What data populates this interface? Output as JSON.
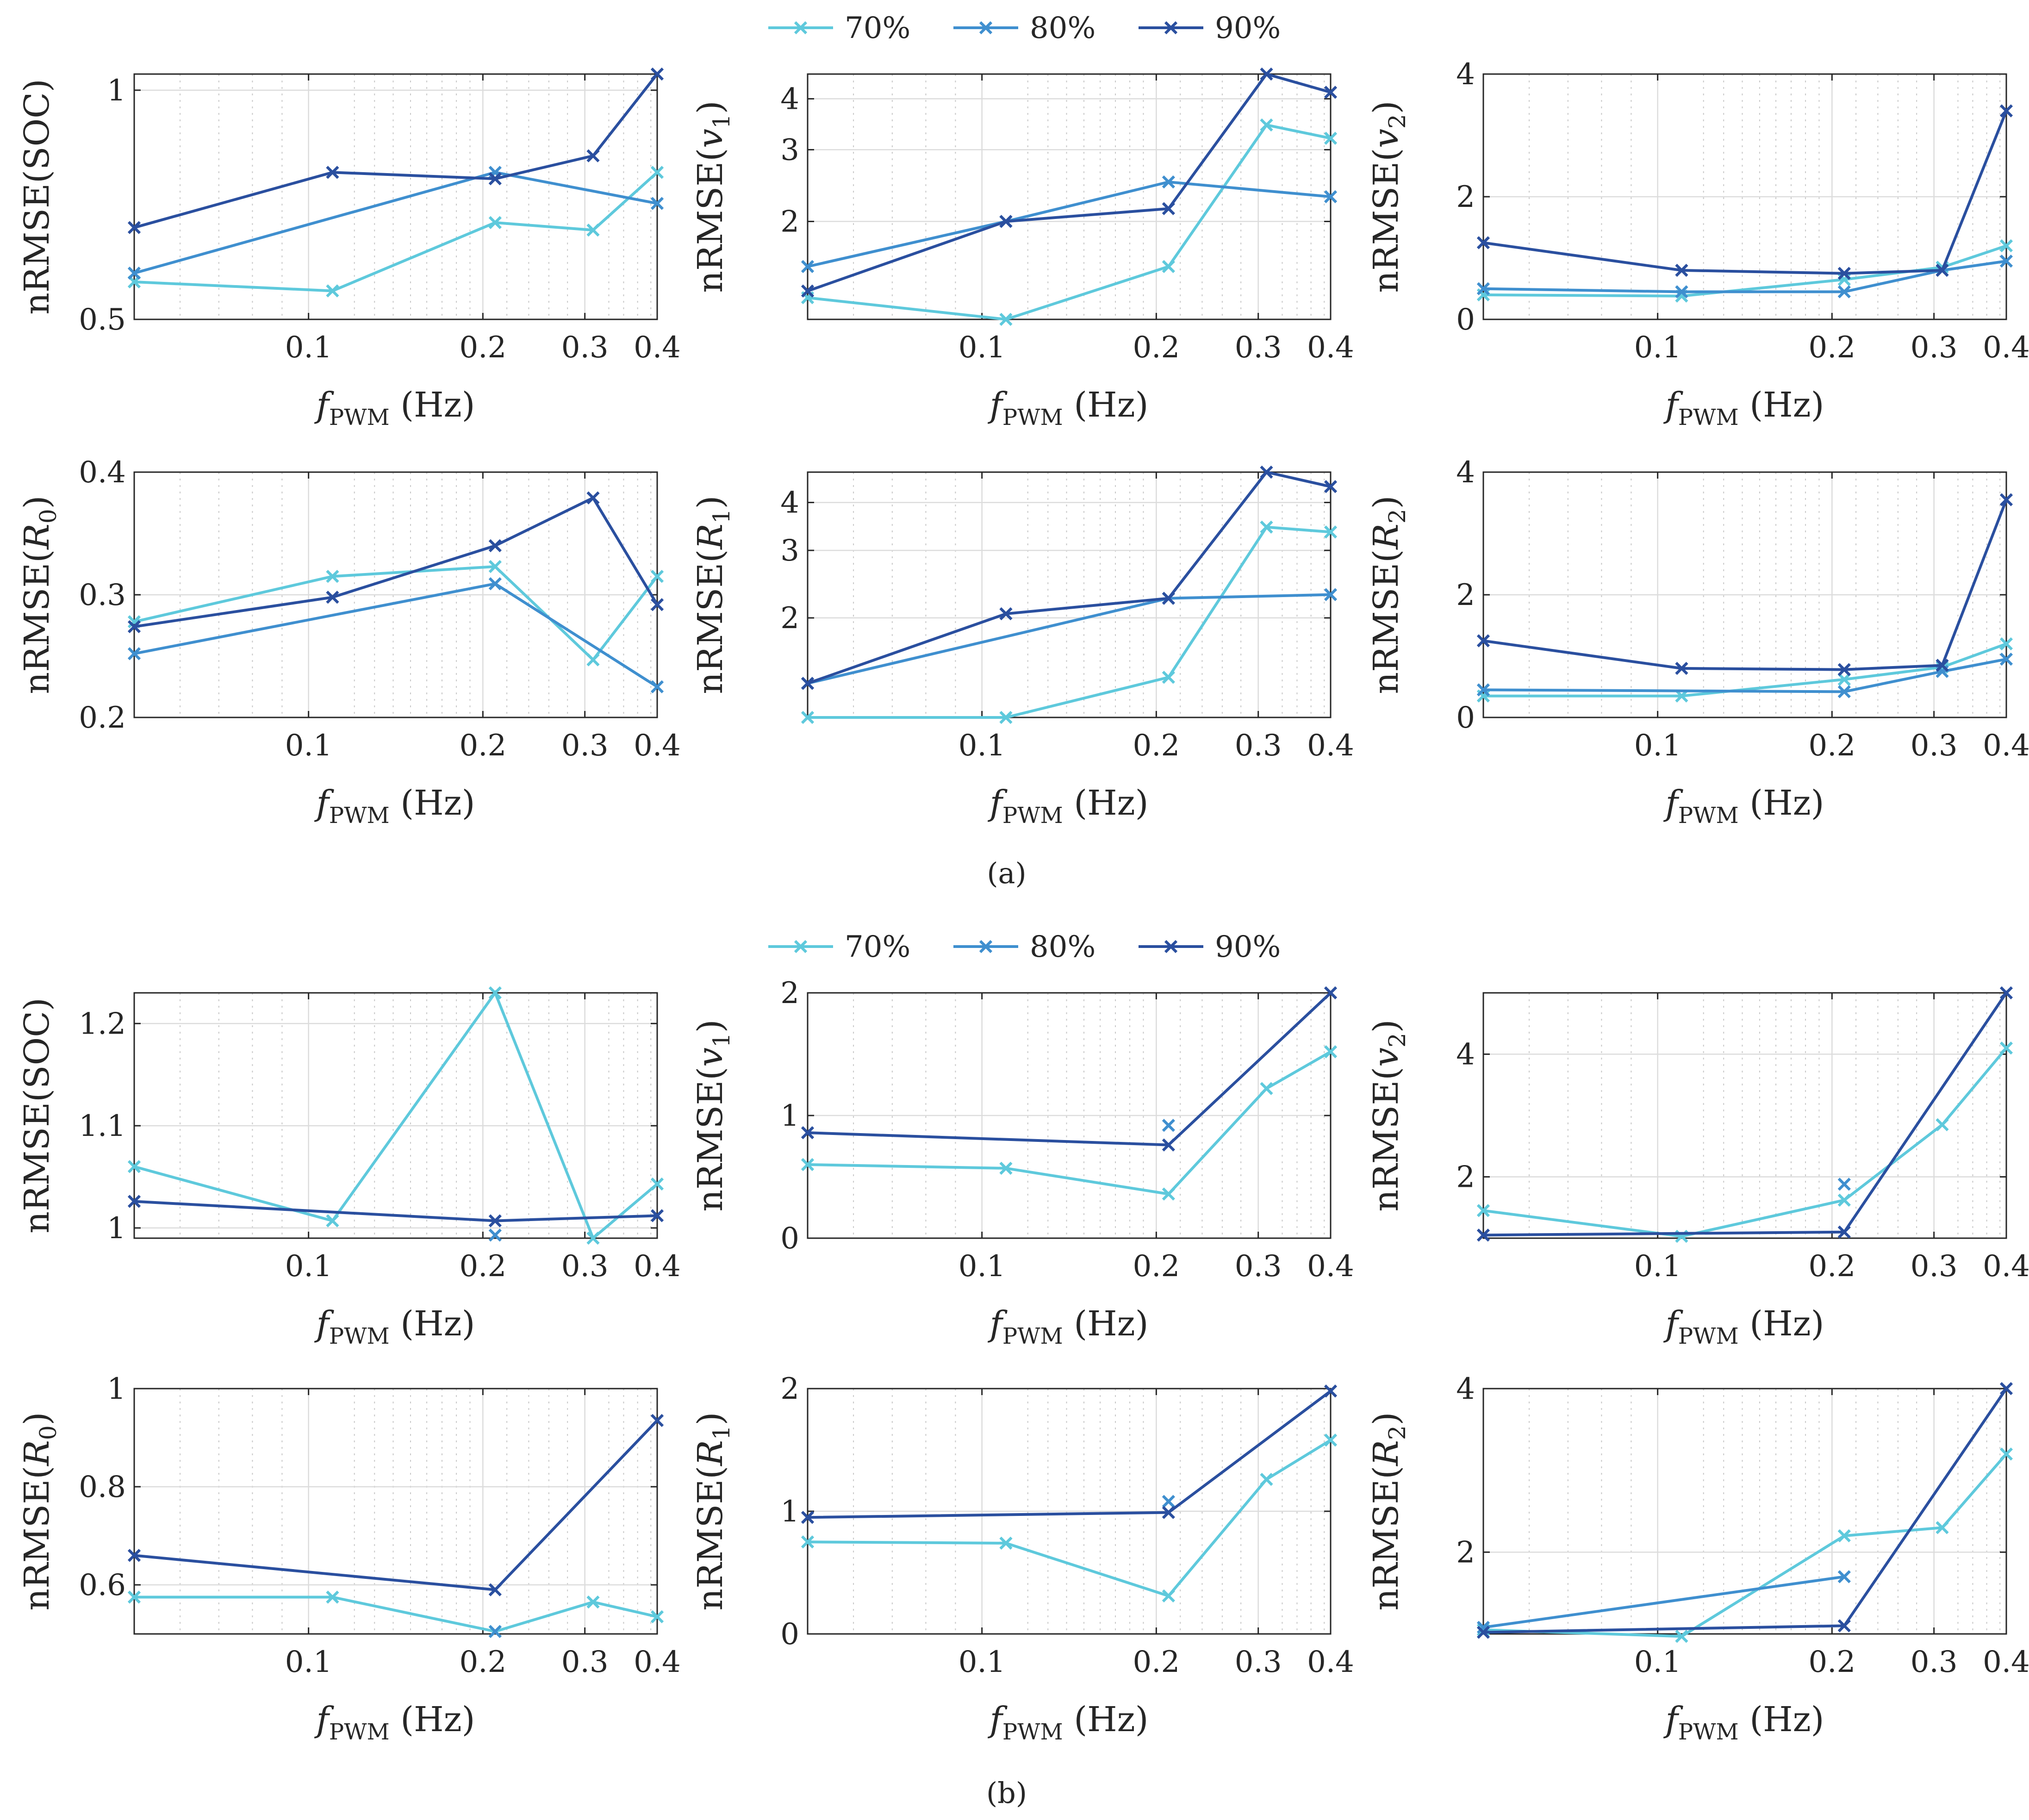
{
  "colors": {
    "70%": "#5ec9dc",
    "80%": "#3f8fcf",
    "90%": "#2a4f9f"
  },
  "legend": {
    "entries": [
      "70%",
      "80%",
      "90%"
    ]
  },
  "captions": {
    "a": "(a)",
    "b": "(b)"
  },
  "axis_text": {
    "x_label_main": "f",
    "x_label_sub": "PWM",
    "x_label_unit": " (Hz)",
    "x_ticks": [
      "0.1",
      "0.2",
      "0.3",
      "0.4"
    ]
  },
  "chart_data": [
    {
      "id": "a-soc",
      "type": "line",
      "ylabel": "nRMSE(SOC)",
      "ylabel_main": "nRMSE(SOC)",
      "ylabel_sub": "",
      "yscale": "log",
      "xscale": "log",
      "xlim": [
        0.05,
        0.4
      ],
      "ylim": [
        0.5,
        1.05
      ],
      "yticks": [
        0.5,
        1
      ],
      "ytick_labels": [
        "0.5",
        "1"
      ],
      "x": [
        0.05,
        0.11,
        0.21,
        0.31,
        0.4
      ],
      "series": [
        {
          "name": "70%",
          "values": [
            0.56,
            0.545,
            0.67,
            0.655,
            0.78
          ]
        },
        {
          "name": "80%",
          "values": [
            0.575,
            null,
            0.78,
            null,
            0.71
          ]
        },
        {
          "name": "90%",
          "values": [
            0.66,
            0.78,
            0.765,
            0.82,
            1.05
          ]
        }
      ]
    },
    {
      "id": "a-v1",
      "type": "line",
      "ylabel": "nRMSE(v1)",
      "ylabel_main": "nRMSE(",
      "ylabel_var": "v",
      "ylabel_sub": "1",
      "yscale": "log",
      "xscale": "log",
      "xlim": [
        0.05,
        0.4
      ],
      "ylim": [
        1.15,
        4.6
      ],
      "yticks": [
        2,
        3,
        4
      ],
      "ytick_labels": [
        "2",
        "3",
        "4"
      ],
      "x": [
        0.05,
        0.11,
        0.21,
        0.31,
        0.4
      ],
      "series": [
        {
          "name": "70%",
          "values": [
            1.3,
            1.15,
            1.55,
            3.45,
            3.2
          ]
        },
        {
          "name": "80%",
          "values": [
            1.55,
            2.0,
            2.5,
            null,
            2.3
          ]
        },
        {
          "name": "90%",
          "values": [
            1.35,
            2.0,
            2.15,
            4.6,
            4.15
          ]
        }
      ]
    },
    {
      "id": "a-v2",
      "type": "line",
      "ylabel": "nRMSE(v2)",
      "ylabel_main": "nRMSE(",
      "ylabel_var": "v",
      "ylabel_sub": "2",
      "yscale": "linear",
      "xscale": "log",
      "xlim": [
        0.05,
        0.4
      ],
      "ylim": [
        0,
        4
      ],
      "yticks": [
        0,
        2,
        4
      ],
      "ytick_labels": [
        "0",
        "2",
        "4"
      ],
      "x": [
        0.05,
        0.11,
        0.21,
        0.31,
        0.4
      ],
      "series": [
        {
          "name": "70%",
          "values": [
            0.4,
            0.38,
            0.65,
            0.85,
            1.2
          ]
        },
        {
          "name": "80%",
          "values": [
            0.5,
            0.45,
            0.45,
            0.8,
            0.95
          ]
        },
        {
          "name": "90%",
          "values": [
            1.25,
            0.8,
            0.75,
            0.8,
            3.4
          ]
        }
      ]
    },
    {
      "id": "a-r0",
      "type": "line",
      "ylabel": "nRMSE(R0)",
      "ylabel_main": "nRMSE(",
      "ylabel_var": "R",
      "ylabel_sub": "0",
      "yscale": "linear",
      "xscale": "log",
      "xlim": [
        0.05,
        0.4
      ],
      "ylim": [
        0.2,
        0.4
      ],
      "yticks": [
        0.2,
        0.3,
        0.4
      ],
      "ytick_labels": [
        "0.2",
        "0.3",
        "0.4"
      ],
      "x": [
        0.05,
        0.11,
        0.21,
        0.31,
        0.4
      ],
      "series": [
        {
          "name": "70%",
          "values": [
            0.278,
            0.315,
            0.323,
            0.247,
            0.315
          ]
        },
        {
          "name": "80%",
          "values": [
            0.252,
            null,
            0.309,
            null,
            0.225
          ]
        },
        {
          "name": "90%",
          "values": [
            0.274,
            0.298,
            0.34,
            0.379,
            0.292
          ]
        }
      ]
    },
    {
      "id": "a-r1",
      "type": "line",
      "ylabel": "nRMSE(R1)",
      "ylabel_main": "nRMSE(",
      "ylabel_var": "R",
      "ylabel_sub": "1",
      "yscale": "log",
      "xscale": "log",
      "xlim": [
        0.05,
        0.4
      ],
      "ylim": [
        1.1,
        4.8
      ],
      "yticks": [
        2,
        3,
        4
      ],
      "ytick_labels": [
        "2",
        "3",
        "4"
      ],
      "x": [
        0.05,
        0.11,
        0.21,
        0.31,
        0.4
      ],
      "series": [
        {
          "name": "70%",
          "values": [
            1.1,
            1.1,
            1.4,
            3.45,
            3.35
          ]
        },
        {
          "name": "80%",
          "values": [
            1.35,
            null,
            2.25,
            null,
            2.3
          ]
        },
        {
          "name": "90%",
          "values": [
            1.35,
            2.05,
            2.25,
            4.8,
            4.4
          ]
        }
      ]
    },
    {
      "id": "a-r2",
      "type": "line",
      "ylabel": "nRMSE(R2)",
      "ylabel_main": "nRMSE(",
      "ylabel_var": "R",
      "ylabel_sub": "2",
      "yscale": "linear",
      "xscale": "log",
      "xlim": [
        0.05,
        0.4
      ],
      "ylim": [
        0,
        4
      ],
      "yticks": [
        0,
        2,
        4
      ],
      "ytick_labels": [
        "0",
        "2",
        "4"
      ],
      "x": [
        0.05,
        0.11,
        0.21,
        0.31,
        0.4
      ],
      "series": [
        {
          "name": "70%",
          "values": [
            0.35,
            0.35,
            0.62,
            0.82,
            1.2
          ]
        },
        {
          "name": "80%",
          "values": [
            0.45,
            null,
            0.42,
            0.75,
            0.95
          ]
        },
        {
          "name": "90%",
          "values": [
            1.25,
            0.8,
            0.78,
            0.85,
            3.55
          ]
        }
      ]
    },
    {
      "id": "b-soc",
      "type": "line",
      "ylabel": "nRMSE(SOC)",
      "ylabel_main": "nRMSE(SOC)",
      "ylabel_sub": "",
      "yscale": "linear",
      "xscale": "log",
      "xlim": [
        0.05,
        0.4
      ],
      "ylim": [
        0.99,
        1.23
      ],
      "yticks": [
        1,
        1.1,
        1.2
      ],
      "ytick_labels": [
        "1",
        "1.1",
        "1.2"
      ],
      "x": [
        0.05,
        0.11,
        0.21,
        0.31,
        0.4
      ],
      "series": [
        {
          "name": "70%",
          "values": [
            1.06,
            1.007,
            1.23,
            0.99,
            1.043
          ]
        },
        {
          "name": "80%",
          "values": [
            null,
            null,
            0.993,
            null,
            null
          ]
        },
        {
          "name": "90%",
          "values": [
            1.026,
            null,
            1.007,
            null,
            1.012
          ]
        }
      ]
    },
    {
      "id": "b-v1",
      "type": "line",
      "ylabel": "nRMSE(v1)",
      "ylabel_main": "nRMSE(",
      "ylabel_var": "v",
      "ylabel_sub": "1",
      "yscale": "linear",
      "xscale": "log",
      "xlim": [
        0.05,
        0.4
      ],
      "ylim": [
        0,
        2
      ],
      "yticks": [
        0,
        1,
        2
      ],
      "ytick_labels": [
        "0",
        "1",
        "2"
      ],
      "x": [
        0.05,
        0.11,
        0.21,
        0.31,
        0.4
      ],
      "series": [
        {
          "name": "70%",
          "values": [
            0.6,
            0.57,
            0.36,
            1.22,
            1.52
          ]
        },
        {
          "name": "80%",
          "values": [
            null,
            null,
            0.92,
            null,
            null
          ]
        },
        {
          "name": "90%",
          "values": [
            0.86,
            null,
            0.76,
            null,
            2.0
          ]
        }
      ]
    },
    {
      "id": "b-v2",
      "type": "line",
      "ylabel": "nRMSE(v2)",
      "ylabel_main": "nRMSE(",
      "ylabel_var": "v",
      "ylabel_sub": "2",
      "yscale": "linear",
      "xscale": "log",
      "xlim": [
        0.05,
        0.4
      ],
      "ylim": [
        1,
        5
      ],
      "yticks": [
        2,
        4
      ],
      "ytick_labels": [
        "2",
        "4"
      ],
      "x": [
        0.05,
        0.11,
        0.21,
        0.31,
        0.4
      ],
      "series": [
        {
          "name": "70%",
          "values": [
            1.45,
            1.03,
            1.62,
            2.85,
            4.1
          ]
        },
        {
          "name": "80%",
          "values": [
            null,
            null,
            1.88,
            null,
            null
          ]
        },
        {
          "name": "90%",
          "values": [
            1.05,
            null,
            1.1,
            null,
            5.0
          ]
        }
      ]
    },
    {
      "id": "b-r0",
      "type": "line",
      "ylabel": "nRMSE(R0)",
      "ylabel_main": "nRMSE(",
      "ylabel_var": "R",
      "ylabel_sub": "0",
      "yscale": "linear",
      "xscale": "log",
      "xlim": [
        0.05,
        0.4
      ],
      "ylim": [
        0.5,
        1.0
      ],
      "yticks": [
        0.6,
        0.8,
        1
      ],
      "ytick_labels": [
        "0.6",
        "0.8",
        "1"
      ],
      "x": [
        0.05,
        0.11,
        0.21,
        0.31,
        0.4
      ],
      "series": [
        {
          "name": "70%",
          "values": [
            0.575,
            0.575,
            0.505,
            0.565,
            0.535
          ]
        },
        {
          "name": "80%",
          "values": [
            null,
            null,
            0.505,
            null,
            null
          ]
        },
        {
          "name": "90%",
          "values": [
            0.66,
            null,
            0.59,
            null,
            0.935
          ]
        }
      ]
    },
    {
      "id": "b-r1",
      "type": "line",
      "ylabel": "nRMSE(R1)",
      "ylabel_main": "nRMSE(",
      "ylabel_var": "R",
      "ylabel_sub": "1",
      "yscale": "linear",
      "xscale": "log",
      "xlim": [
        0.05,
        0.4
      ],
      "ylim": [
        0,
        2
      ],
      "yticks": [
        0,
        1,
        2
      ],
      "ytick_labels": [
        "0",
        "1",
        "2"
      ],
      "x": [
        0.05,
        0.11,
        0.21,
        0.31,
        0.4
      ],
      "series": [
        {
          "name": "70%",
          "values": [
            0.75,
            0.74,
            0.31,
            1.26,
            1.58
          ]
        },
        {
          "name": "80%",
          "values": [
            null,
            null,
            1.08,
            null,
            null
          ]
        },
        {
          "name": "90%",
          "values": [
            0.95,
            null,
            0.99,
            null,
            1.98
          ]
        }
      ]
    },
    {
      "id": "b-r2",
      "type": "line",
      "ylabel": "nRMSE(R2)",
      "ylabel_main": "nRMSE(",
      "ylabel_var": "R",
      "ylabel_sub": "2",
      "yscale": "linear",
      "xscale": "log",
      "xlim": [
        0.05,
        0.4
      ],
      "ylim": [
        1,
        4
      ],
      "yticks": [
        2,
        4
      ],
      "ytick_labels": [
        "2",
        "4"
      ],
      "x": [
        0.05,
        0.11,
        0.21,
        0.31,
        0.4
      ],
      "series": [
        {
          "name": "70%",
          "values": [
            1.05,
            0.97,
            2.2,
            2.3,
            3.2
          ]
        },
        {
          "name": "80%",
          "values": [
            1.08,
            null,
            1.7,
            null,
            null
          ]
        },
        {
          "name": "90%",
          "values": [
            1.02,
            null,
            1.1,
            null,
            4.0
          ]
        }
      ]
    }
  ]
}
